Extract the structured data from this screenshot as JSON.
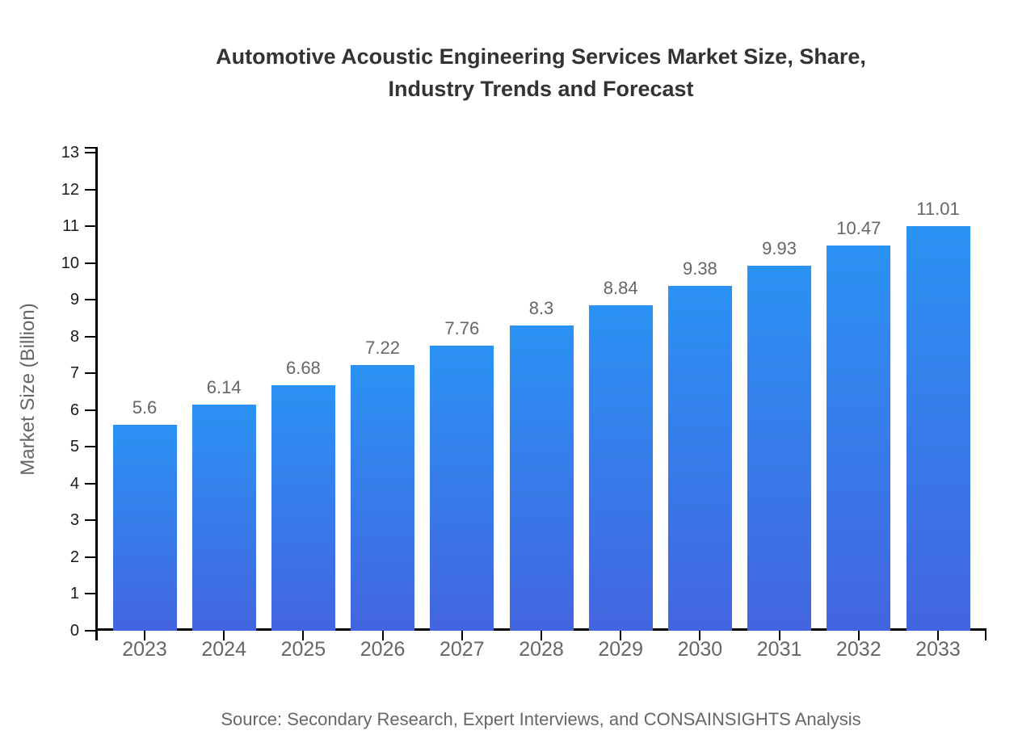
{
  "chart": {
    "title_line1": "Automotive Acoustic Engineering Services Market Size, Share,",
    "title_line2": "Industry Trends and Forecast",
    "source": "Source: Secondary Research, Expert Interviews, and CONSAINSIGHTS Analysis"
  },
  "chart_data": {
    "type": "bar",
    "title": "Automotive Acoustic Engineering Services Market Size, Share, Industry Trends and Forecast",
    "categories": [
      "2023",
      "2024",
      "2025",
      "2026",
      "2027",
      "2028",
      "2029",
      "2030",
      "2031",
      "2032",
      "2033"
    ],
    "values": [
      5.6,
      6.14,
      6.68,
      7.22,
      7.76,
      8.3,
      8.84,
      9.38,
      9.93,
      10.47,
      11.01
    ],
    "value_labels": [
      "5.6",
      "6.14",
      "6.68",
      "7.22",
      "7.76",
      "8.3",
      "8.84",
      "9.38",
      "9.93",
      "10.47",
      "11.01"
    ],
    "xlabel": "",
    "ylabel": "Market Size (Billion)",
    "ylim": [
      0,
      13
    ],
    "y_ticks": [
      0,
      1,
      2,
      3,
      4,
      5,
      6,
      7,
      8,
      9,
      10,
      11,
      12,
      13
    ],
    "grid": false,
    "legend": "none",
    "bar_gradient_top": "#2b92f4",
    "bar_gradient_bottom": "#4365df",
    "axis_color": "#000000",
    "value_label_color": "#666666",
    "category_label_color": "#666666",
    "y_tick_label_color": "#1a1a1a"
  }
}
